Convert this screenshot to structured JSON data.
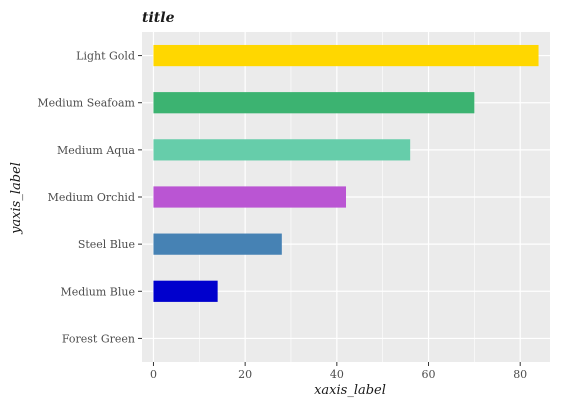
{
  "chart_data": {
    "type": "bar",
    "orientation": "horizontal",
    "title": "title",
    "xlabel": "xaxis_label",
    "ylabel": "yaxis_label",
    "categories": [
      "Forest Green",
      "Medium Blue",
      "Steel Blue",
      "Medium Orchid",
      "Medium Aqua",
      "Medium Seafoam",
      "Light Gold"
    ],
    "values": [
      0,
      14,
      28,
      42,
      56,
      70,
      84
    ],
    "colors": [
      "#228b22",
      "#0000cd",
      "#4682b4",
      "#ba55d3",
      "#66cdaa",
      "#3cb371",
      "#ffd700"
    ],
    "xlim": [
      -2.5,
      86.5
    ],
    "xticks": [
      0,
      20,
      40,
      60,
      80
    ],
    "grid": true,
    "panel_background": "#ebebeb",
    "grid_color": "#ffffff"
  }
}
